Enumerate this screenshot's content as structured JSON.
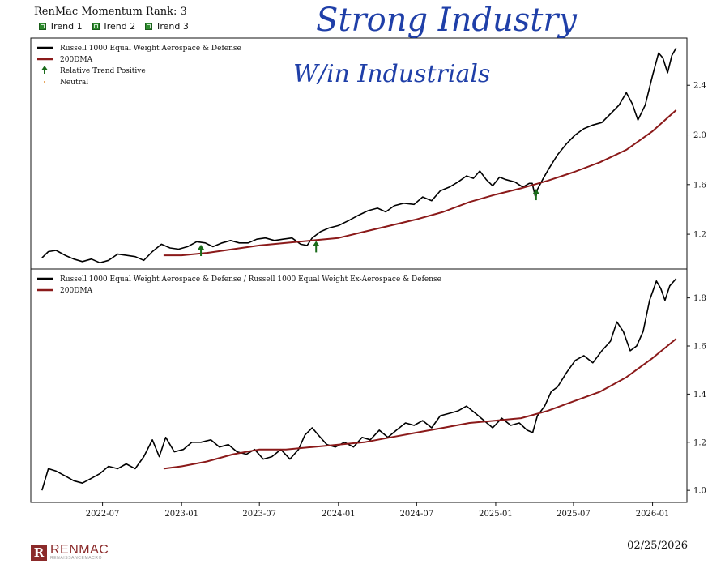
{
  "header": {
    "rank_title": "RenMac Momentum Rank: 3",
    "trends": [
      "Trend 1",
      "Trend 2",
      "Trend 3"
    ]
  },
  "handwriting": {
    "line1": "Strong Industry",
    "line2": "W/in Industrials"
  },
  "footer": {
    "logo_mark": "R",
    "logo_name": "RENMAC",
    "logo_sub": "RENAISSANCEMACRO",
    "date": "02/25/2026"
  },
  "colors": {
    "price": "#000000",
    "dma": "#8b1a1a",
    "arrow": "#1a6b1a",
    "annotation": "#1f3fa8",
    "trend_box": "#2e8b2e"
  },
  "chart_data": [
    {
      "type": "line",
      "legend": [
        "Russell 1000 Equal Weight Aerospace & Defense",
        "200DMA",
        "Relative Trend Positive",
        "Neutral"
      ],
      "legend_position": "top-left",
      "y_ticks": [
        1.2,
        1.6,
        2.0,
        2.4
      ],
      "y_tick_labels": [
        "1.2",
        "1.6",
        "2.0",
        "2.4"
      ],
      "ylim": [
        0.92,
        2.78
      ],
      "series": [
        {
          "name": "Russell 1000 Equal Weight Aerospace & Defense",
          "color": "#000000",
          "points": [
            [
              "2022-02-10",
              1.01
            ],
            [
              "2022-02-25",
              1.06
            ],
            [
              "2022-03-15",
              1.07
            ],
            [
              "2022-04-05",
              1.03
            ],
            [
              "2022-04-25",
              1.0
            ],
            [
              "2022-05-15",
              0.98
            ],
            [
              "2022-06-05",
              1.0
            ],
            [
              "2022-06-25",
              0.97
            ],
            [
              "2022-07-15",
              0.99
            ],
            [
              "2022-08-05",
              1.04
            ],
            [
              "2022-08-25",
              1.03
            ],
            [
              "2022-09-15",
              1.02
            ],
            [
              "2022-10-05",
              0.99
            ],
            [
              "2022-10-25",
              1.06
            ],
            [
              "2022-11-15",
              1.12
            ],
            [
              "2022-12-05",
              1.09
            ],
            [
              "2022-12-25",
              1.08
            ],
            [
              "2023-01-15",
              1.1
            ],
            [
              "2023-02-05",
              1.14
            ],
            [
              "2023-02-25",
              1.13
            ],
            [
              "2023-03-15",
              1.1
            ],
            [
              "2023-04-05",
              1.13
            ],
            [
              "2023-04-25",
              1.15
            ],
            [
              "2023-05-15",
              1.13
            ],
            [
              "2023-06-05",
              1.13
            ],
            [
              "2023-06-25",
              1.16
            ],
            [
              "2023-07-15",
              1.17
            ],
            [
              "2023-08-05",
              1.15
            ],
            [
              "2023-08-25",
              1.16
            ],
            [
              "2023-09-15",
              1.17
            ],
            [
              "2023-10-05",
              1.12
            ],
            [
              "2023-10-20",
              1.11
            ],
            [
              "2023-11-01",
              1.17
            ],
            [
              "2023-11-20",
              1.22
            ],
            [
              "2023-12-10",
              1.25
            ],
            [
              "2024-01-01",
              1.27
            ],
            [
              "2024-01-25",
              1.31
            ],
            [
              "2024-02-15",
              1.35
            ],
            [
              "2024-03-10",
              1.39
            ],
            [
              "2024-04-01",
              1.41
            ],
            [
              "2024-04-20",
              1.38
            ],
            [
              "2024-05-10",
              1.43
            ],
            [
              "2024-06-01",
              1.45
            ],
            [
              "2024-06-25",
              1.44
            ],
            [
              "2024-07-15",
              1.5
            ],
            [
              "2024-08-05",
              1.47
            ],
            [
              "2024-08-25",
              1.55
            ],
            [
              "2024-09-15",
              1.58
            ],
            [
              "2024-10-05",
              1.62
            ],
            [
              "2024-10-25",
              1.67
            ],
            [
              "2024-11-10",
              1.65
            ],
            [
              "2024-11-25",
              1.71
            ],
            [
              "2024-12-10",
              1.64
            ],
            [
              "2024-12-25",
              1.59
            ],
            [
              "2025-01-10",
              1.66
            ],
            [
              "2025-01-25",
              1.64
            ],
            [
              "2025-02-15",
              1.62
            ],
            [
              "2025-03-05",
              1.58
            ],
            [
              "2025-03-20",
              1.61
            ],
            [
              "2025-03-27",
              1.61
            ],
            [
              "2025-04-04",
              1.49
            ],
            [
              "2025-04-08",
              1.56
            ],
            [
              "2025-04-20",
              1.64
            ],
            [
              "2025-05-05",
              1.73
            ],
            [
              "2025-05-25",
              1.84
            ],
            [
              "2025-06-15",
              1.93
            ],
            [
              "2025-07-05",
              2.0
            ],
            [
              "2025-07-25",
              2.05
            ],
            [
              "2025-08-15",
              2.08
            ],
            [
              "2025-09-05",
              2.1
            ],
            [
              "2025-09-25",
              2.17
            ],
            [
              "2025-10-15",
              2.24
            ],
            [
              "2025-11-01",
              2.34
            ],
            [
              "2025-11-15",
              2.25
            ],
            [
              "2025-11-28",
              2.12
            ],
            [
              "2025-12-15",
              2.24
            ],
            [
              "2026-01-01",
              2.48
            ],
            [
              "2026-01-15",
              2.66
            ],
            [
              "2026-01-25",
              2.62
            ],
            [
              "2026-02-05",
              2.5
            ],
            [
              "2026-02-15",
              2.64
            ],
            [
              "2026-02-25",
              2.7
            ]
          ]
        },
        {
          "name": "200DMA",
          "color": "#8b1a1a",
          "points": [
            [
              "2022-11-20",
              1.03
            ],
            [
              "2023-01-01",
              1.03
            ],
            [
              "2023-03-01",
              1.05
            ],
            [
              "2023-05-01",
              1.08
            ],
            [
              "2023-07-01",
              1.11
            ],
            [
              "2023-09-01",
              1.13
            ],
            [
              "2023-11-01",
              1.15
            ],
            [
              "2024-01-01",
              1.17
            ],
            [
              "2024-03-01",
              1.22
            ],
            [
              "2024-05-01",
              1.27
            ],
            [
              "2024-07-01",
              1.32
            ],
            [
              "2024-09-01",
              1.38
            ],
            [
              "2024-11-01",
              1.46
            ],
            [
              "2025-01-01",
              1.52
            ],
            [
              "2025-03-01",
              1.57
            ],
            [
              "2025-05-01",
              1.63
            ],
            [
              "2025-07-01",
              1.7
            ],
            [
              "2025-09-01",
              1.78
            ],
            [
              "2025-11-01",
              1.88
            ],
            [
              "2026-01-01",
              2.03
            ],
            [
              "2026-02-25",
              2.2
            ]
          ]
        }
      ],
      "markers": [
        {
          "label": "Relative Trend Positive",
          "date": "2023-02-15",
          "value": 1.07
        },
        {
          "label": "Relative Trend Positive",
          "date": "2023-11-10",
          "value": 1.1
        },
        {
          "label": "Relative Trend Positive",
          "date": "2025-04-05",
          "value": 1.52
        }
      ]
    },
    {
      "type": "line",
      "legend": [
        "Russell 1000 Equal Weight Aerospace & Defense / Russell 1000 Equal Weight Ex-Aerospace & Defense",
        "200DMA"
      ],
      "legend_position": "top-left",
      "y_ticks": [
        1.0,
        1.2,
        1.4,
        1.6,
        1.8
      ],
      "y_tick_labels": [
        "1.0",
        "1.2",
        "1.4",
        "1.6",
        "1.8"
      ],
      "ylim": [
        0.95,
        1.92
      ],
      "x_ticks": [
        "2022-07-01",
        "2023-01-01",
        "2023-07-01",
        "2024-01-01",
        "2024-07-01",
        "2025-01-01",
        "2025-07-01",
        "2026-01-01"
      ],
      "x_tick_labels": [
        "2022-07",
        "2023-01",
        "2023-07",
        "2024-01",
        "2024-07",
        "2025-01",
        "2025-07",
        "2026-01"
      ],
      "series": [
        {
          "name": "Russell 1000 Equal Weight Aerospace & Defense / Russell 1000 Equal Weight Ex-Aerospace & Defense",
          "color": "#000000",
          "points": [
            [
              "2022-02-10",
              1.0
            ],
            [
              "2022-02-25",
              1.09
            ],
            [
              "2022-03-15",
              1.08
            ],
            [
              "2022-04-05",
              1.06
            ],
            [
              "2022-04-25",
              1.04
            ],
            [
              "2022-05-15",
              1.03
            ],
            [
              "2022-06-05",
              1.05
            ],
            [
              "2022-06-25",
              1.07
            ],
            [
              "2022-07-15",
              1.1
            ],
            [
              "2022-08-05",
              1.09
            ],
            [
              "2022-08-25",
              1.11
            ],
            [
              "2022-09-15",
              1.09
            ],
            [
              "2022-10-05",
              1.14
            ],
            [
              "2022-10-25",
              1.21
            ],
            [
              "2022-11-10",
              1.14
            ],
            [
              "2022-11-25",
              1.22
            ],
            [
              "2022-12-15",
              1.16
            ],
            [
              "2023-01-05",
              1.17
            ],
            [
              "2023-01-25",
              1.2
            ],
            [
              "2023-02-15",
              1.2
            ],
            [
              "2023-03-10",
              1.21
            ],
            [
              "2023-03-30",
              1.18
            ],
            [
              "2023-04-20",
              1.19
            ],
            [
              "2023-05-10",
              1.16
            ],
            [
              "2023-06-01",
              1.15
            ],
            [
              "2023-06-20",
              1.17
            ],
            [
              "2023-07-10",
              1.13
            ],
            [
              "2023-07-30",
              1.14
            ],
            [
              "2023-08-20",
              1.17
            ],
            [
              "2023-09-10",
              1.13
            ],
            [
              "2023-09-30",
              1.17
            ],
            [
              "2023-10-15",
              1.23
            ],
            [
              "2023-11-01",
              1.26
            ],
            [
              "2023-11-15",
              1.23
            ],
            [
              "2023-12-05",
              1.19
            ],
            [
              "2023-12-25",
              1.18
            ],
            [
              "2024-01-15",
              1.2
            ],
            [
              "2024-02-05",
              1.18
            ],
            [
              "2024-02-25",
              1.22
            ],
            [
              "2024-03-15",
              1.21
            ],
            [
              "2024-04-05",
              1.25
            ],
            [
              "2024-04-25",
              1.22
            ],
            [
              "2024-05-15",
              1.25
            ],
            [
              "2024-06-05",
              1.28
            ],
            [
              "2024-06-25",
              1.27
            ],
            [
              "2024-07-15",
              1.29
            ],
            [
              "2024-08-05",
              1.26
            ],
            [
              "2024-08-25",
              1.31
            ],
            [
              "2024-09-15",
              1.32
            ],
            [
              "2024-10-05",
              1.33
            ],
            [
              "2024-10-25",
              1.35
            ],
            [
              "2024-11-15",
              1.32
            ],
            [
              "2024-12-05",
              1.29
            ],
            [
              "2024-12-25",
              1.26
            ],
            [
              "2025-01-15",
              1.3
            ],
            [
              "2025-02-05",
              1.27
            ],
            [
              "2025-02-25",
              1.28
            ],
            [
              "2025-03-15",
              1.25
            ],
            [
              "2025-03-28",
              1.24
            ],
            [
              "2025-04-08",
              1.31
            ],
            [
              "2025-04-25",
              1.35
            ],
            [
              "2025-05-10",
              1.41
            ],
            [
              "2025-05-25",
              1.43
            ],
            [
              "2025-06-15",
              1.49
            ],
            [
              "2025-07-05",
              1.54
            ],
            [
              "2025-07-25",
              1.56
            ],
            [
              "2025-08-15",
              1.53
            ],
            [
              "2025-09-05",
              1.58
            ],
            [
              "2025-09-25",
              1.62
            ],
            [
              "2025-10-10",
              1.7
            ],
            [
              "2025-10-25",
              1.66
            ],
            [
              "2025-11-10",
              1.58
            ],
            [
              "2025-11-25",
              1.6
            ],
            [
              "2025-12-10",
              1.66
            ],
            [
              "2025-12-25",
              1.79
            ],
            [
              "2026-01-10",
              1.87
            ],
            [
              "2026-01-20",
              1.84
            ],
            [
              "2026-01-30",
              1.79
            ],
            [
              "2026-02-10",
              1.85
            ],
            [
              "2026-02-25",
              1.88
            ]
          ]
        },
        {
          "name": "200DMA",
          "color": "#8b1a1a",
          "points": [
            [
              "2022-11-20",
              1.09
            ],
            [
              "2023-01-01",
              1.1
            ],
            [
              "2023-03-01",
              1.12
            ],
            [
              "2023-05-01",
              1.15
            ],
            [
              "2023-07-01",
              1.17
            ],
            [
              "2023-09-01",
              1.17
            ],
            [
              "2023-11-01",
              1.18
            ],
            [
              "2024-01-01",
              1.19
            ],
            [
              "2024-03-01",
              1.2
            ],
            [
              "2024-05-01",
              1.22
            ],
            [
              "2024-07-01",
              1.24
            ],
            [
              "2024-09-01",
              1.26
            ],
            [
              "2024-11-01",
              1.28
            ],
            [
              "2025-01-01",
              1.29
            ],
            [
              "2025-03-01",
              1.3
            ],
            [
              "2025-05-01",
              1.33
            ],
            [
              "2025-07-01",
              1.37
            ],
            [
              "2025-09-01",
              1.41
            ],
            [
              "2025-11-01",
              1.47
            ],
            [
              "2026-01-01",
              1.55
            ],
            [
              "2026-02-25",
              1.63
            ]
          ]
        }
      ]
    }
  ]
}
